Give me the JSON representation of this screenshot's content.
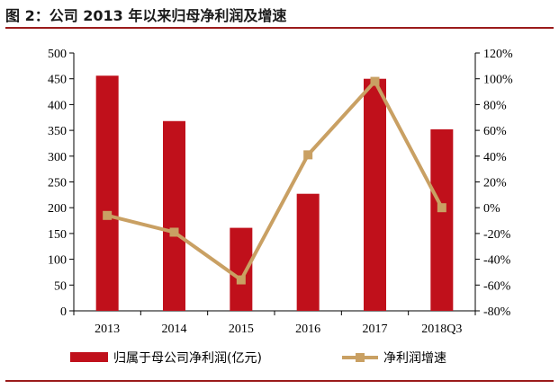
{
  "figure": {
    "title": "图 2：公司 2013 年以来归母净利润及增速",
    "rule_color": "#9b1b1b"
  },
  "chart_data": {
    "type": "bar",
    "categories": [
      "2013",
      "2014",
      "2015",
      "2016",
      "2017",
      "2018Q3"
    ],
    "series": [
      {
        "name": "归属于母公司净利润(亿元)",
        "type": "bar",
        "axis": "left",
        "color": "#c0101b",
        "values": [
          456,
          368,
          161,
          227,
          450,
          352
        ]
      },
      {
        "name": "净利润增速",
        "type": "line",
        "axis": "right",
        "color": "#c9a063",
        "values": [
          -6,
          -19,
          -56,
          41,
          98,
          0
        ]
      }
    ],
    "y_left": {
      "min": 0,
      "max": 500,
      "ticks": [
        0,
        50,
        100,
        150,
        200,
        250,
        300,
        350,
        400,
        450,
        500
      ],
      "tick_labels": [
        "0",
        "50",
        "100",
        "150",
        "200",
        "250",
        "300",
        "350",
        "400",
        "450",
        "500"
      ]
    },
    "y_right": {
      "min": -80,
      "max": 120,
      "ticks": [
        -80,
        -60,
        -40,
        -20,
        0,
        20,
        40,
        60,
        80,
        100,
        120
      ],
      "tick_labels": [
        "-80%",
        "-60%",
        "-40%",
        "-20%",
        "0%",
        "20%",
        "40%",
        "60%",
        "80%",
        "100%",
        "120%"
      ]
    },
    "grid": false,
    "legend": "bottom"
  }
}
